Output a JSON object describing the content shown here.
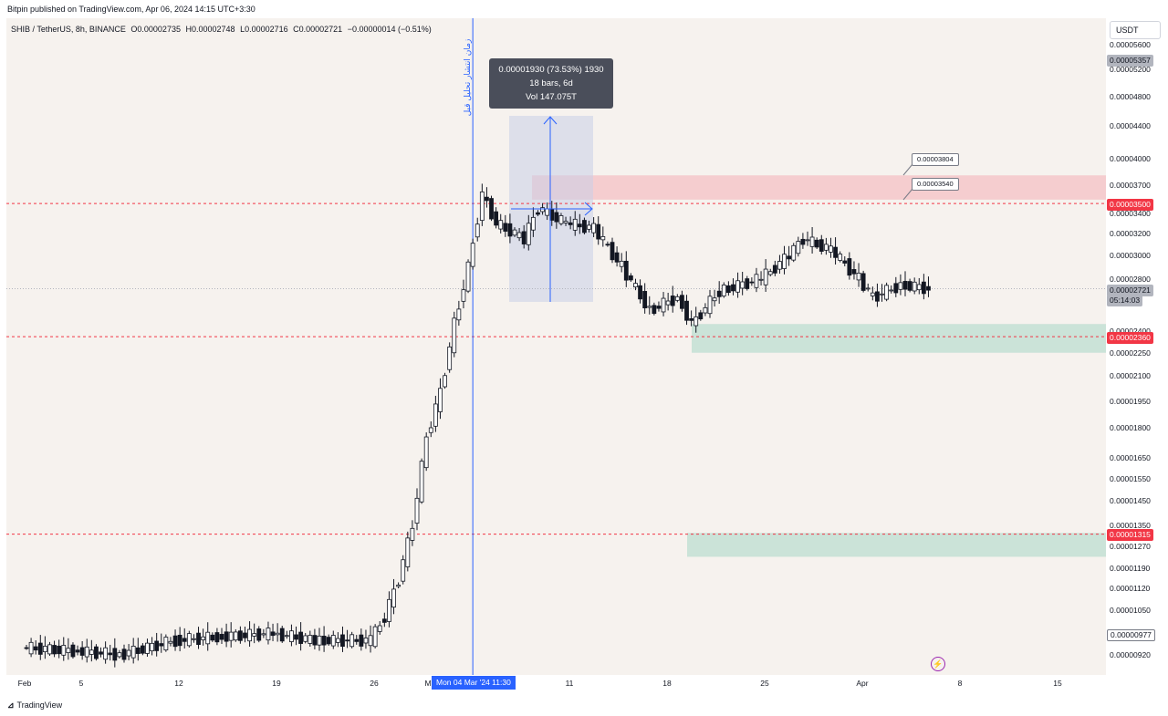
{
  "header": {
    "published": "Bitpin published on TradingView.com, Apr 06, 2024 14:15 UTC+3:30"
  },
  "legend": {
    "symbol": "SHIB / TetherUS, 8h, BINANCE",
    "open": "O0.00002735",
    "high": "H0.00002748",
    "low": "L0.00002716",
    "close": "C0.00002721",
    "change": "−0.00000014 (−0.51%)"
  },
  "price_axis": {
    "unit": "USDT",
    "ticks": [
      "0.00005600",
      "0.00005200",
      "0.00004800",
      "0.00004400",
      "0.00004000",
      "0.00003700",
      "0.00003400",
      "0.00003200",
      "0.00003000",
      "0.00002800",
      "0.00002400",
      "0.00002250",
      "0.00002100",
      "0.00001950",
      "0.00001800",
      "0.00001650",
      "0.00001550",
      "0.00001450",
      "0.00001350",
      "0.00001270",
      "0.00001190",
      "0.00001120",
      "0.00001050",
      "0.00000920"
    ],
    "tags": {
      "top": "0.00005357",
      "r1": "0.00003500",
      "last": "0.00002721",
      "countdown": "05:14:03",
      "r2": "0.00002360",
      "r3": "0.00001315",
      "bottom": "0.00000977"
    }
  },
  "time_axis": {
    "ticks": [
      "Feb",
      "5",
      "12",
      "19",
      "26",
      "M",
      "11",
      "18",
      "25",
      "Apr",
      "8",
      "15"
    ],
    "cursor_label": "Mon 04 Mar '24   11:30"
  },
  "measure": {
    "line1": "0.00001930 (73.53%) 1930",
    "line2": "18 bars, 6d",
    "line3": "Vol 147.075T"
  },
  "notes": {
    "n1": "0.00003804",
    "n2": "0.00003540"
  },
  "vertical_note": "زمان انتشار تحلیل قبل",
  "footer": {
    "brand": "TradingView"
  },
  "colors": {
    "bg": "#f6f2ee",
    "red_zone": "#f4c7c9",
    "green_zone": "#c3e0d3",
    "blue": "#2962ff",
    "red_line": "#f23645"
  },
  "chart_data": {
    "type": "candlestick",
    "symbol": "SHIB / TetherUS",
    "interval": "8h",
    "exchange": "BINANCE",
    "y_scale": "log",
    "ylim": [
      8.8e-06,
      6e-06
    ],
    "horizontal_levels": [
      3.5e-05,
      2.36e-05,
      1.315e-05
    ],
    "zones": [
      {
        "type": "resistance",
        "from": 3.54e-05,
        "to": 3.804e-05
      },
      {
        "type": "support",
        "from": 2.25e-05,
        "to": 2.45e-05
      },
      {
        "type": "support",
        "from": 1.23e-05,
        "to": 1.32e-05
      }
    ],
    "close_path": [
      [
        "2024-02-01",
        9.4e-06
      ],
      [
        "2024-02-05",
        9.3e-06
      ],
      [
        "2024-02-08",
        9.2e-06
      ],
      [
        "2024-02-12",
        9.6e-06
      ],
      [
        "2024-02-15",
        9.7e-06
      ],
      [
        "2024-02-19",
        9.8e-06
      ],
      [
        "2024-02-22",
        9.6e-06
      ],
      [
        "2024-02-26",
        9.6e-06
      ],
      [
        "2024-02-27",
        1.03e-05
      ],
      [
        "2024-02-28",
        1.15e-05
      ],
      [
        "2024-02-29",
        1.35e-05
      ],
      [
        "2024-03-01",
        1.75e-05
      ],
      [
        "2024-03-02",
        2e-05
      ],
      [
        "2024-03-03",
        2.45e-05
      ],
      [
        "2024-03-04",
        2.9e-05
      ],
      [
        "2024-03-05",
        3.6e-05
      ],
      [
        "2024-03-06",
        3.3e-05
      ],
      [
        "2024-03-08",
        3.15e-05
      ],
      [
        "2024-03-09",
        3.45e-05
      ],
      [
        "2024-03-11",
        3.3e-05
      ],
      [
        "2024-03-13",
        3.25e-05
      ],
      [
        "2024-03-15",
        2.9e-05
      ],
      [
        "2024-03-17",
        2.55e-05
      ],
      [
        "2024-03-19",
        2.65e-05
      ],
      [
        "2024-03-20",
        2.45e-05
      ],
      [
        "2024-03-22",
        2.7e-05
      ],
      [
        "2024-03-25",
        2.8e-05
      ],
      [
        "2024-03-27",
        3e-05
      ],
      [
        "2024-03-28",
        3.15e-05
      ],
      [
        "2024-03-30",
        3.05e-05
      ],
      [
        "2024-04-01",
        2.8e-05
      ],
      [
        "2024-04-02",
        2.65e-05
      ],
      [
        "2024-04-04",
        2.75e-05
      ],
      [
        "2024-04-06",
        2.72e-05
      ]
    ]
  }
}
